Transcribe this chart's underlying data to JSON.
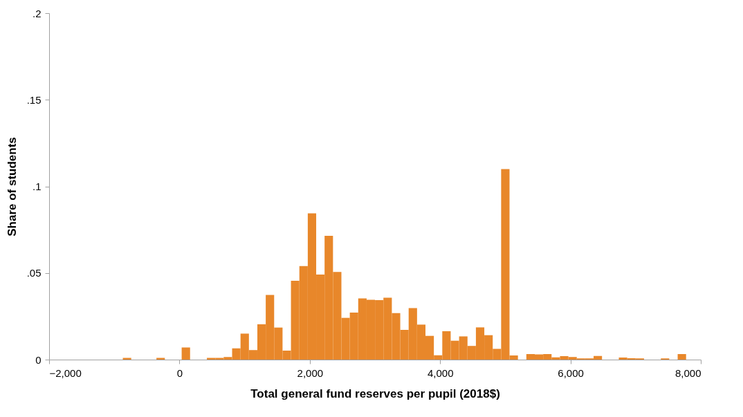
{
  "chart_data": {
    "type": "histogram",
    "xlabel": "Total general fund reserves per pupil (2018$)",
    "ylabel": "Share of students",
    "color": "#e8872a",
    "bins": [
      -869,
      -740,
      -611,
      -482,
      -353,
      -224,
      -95,
      34,
      163,
      292,
      421,
      550,
      679,
      808,
      937,
      1066,
      1195,
      1324,
      1453,
      1582,
      1711,
      1840,
      1969,
      2098,
      2227,
      2356,
      2485,
      2614,
      2743,
      2872,
      3001,
      3130,
      3259,
      3388,
      3517,
      3646,
      3775,
      3904,
      4033,
      4162,
      4291,
      4420,
      4549,
      4678,
      4807,
      4936,
      5065,
      5194,
      5323,
      5452,
      5581,
      5710,
      5839,
      5968,
      6097,
      6226,
      6355,
      6484,
      6613,
      6742,
      6871,
      7000,
      7129,
      7258,
      7387,
      7516,
      7645,
      7774
    ],
    "values": [
      0.001,
      0,
      0,
      0,
      0.001,
      0,
      0,
      0.007,
      0,
      0,
      0.001,
      0.001,
      0.0015,
      0.0065,
      0.015,
      0.0055,
      0.0204,
      0.0373,
      0.0185,
      0.0052,
      0.0455,
      0.054,
      0.0844,
      0.0491,
      0.0715,
      0.0506,
      0.0241,
      0.0271,
      0.0353,
      0.0345,
      0.0343,
      0.0357,
      0.0268,
      0.0172,
      0.0297,
      0.0202,
      0.0137,
      0.0025,
      0.0164,
      0.0109,
      0.0134,
      0.0079,
      0.0186,
      0.0141,
      0.0062,
      0.11,
      0.0024,
      0,
      0.0032,
      0.003,
      0.0032,
      0.0013,
      0.002,
      0.0015,
      0.0007,
      0.0007,
      0.0021,
      0,
      0,
      0.0012,
      0.0008,
      0.0007,
      0,
      0,
      0.0007,
      0,
      0.0032
    ],
    "xlim": [
      -2000,
      8000
    ],
    "xticks": [
      {
        "value": -2000,
        "label": "−2,000"
      },
      0,
      {
        "value": 2000,
        "label": "2,000"
      },
      {
        "value": 4000,
        "label": "4,000"
      },
      {
        "value": 6000,
        "label": "6,000"
      },
      {
        "value": 8000,
        "label": "8,000"
      }
    ],
    "ylim": [
      0,
      0.2
    ],
    "yticks": [
      0,
      {
        "value": 0.05,
        "label": ".05"
      },
      {
        "value": 0.1,
        "label": ".1"
      },
      {
        "value": 0.15,
        "label": ".15"
      },
      {
        "value": 0.2,
        "label": ".2"
      }
    ],
    "grid": false
  }
}
